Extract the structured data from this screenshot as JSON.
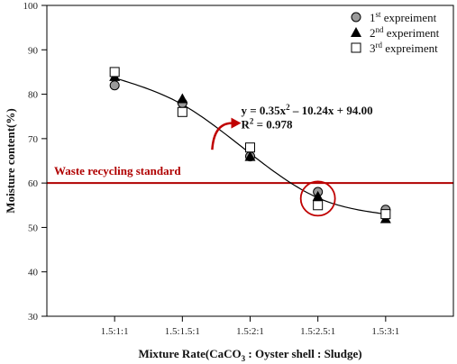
{
  "chart_data": {
    "type": "scatter",
    "categories": [
      "1.5:1:1",
      "1.5:1.5:1",
      "1.5:2:1",
      "1.5:2.5:1",
      "1.5:3:1"
    ],
    "x_numeric": [
      1,
      1.5,
      2,
      2.5,
      3
    ],
    "ylabel": "Moisture content(%)",
    "xlabel": {
      "before": "Mixture Rate(CaCO",
      "sub": "3",
      "after": " : Oyster shell : Sludge)"
    },
    "ylim": [
      30,
      100
    ],
    "yticks": [
      30,
      40,
      50,
      60,
      70,
      80,
      90,
      100
    ],
    "series": [
      {
        "name": {
          "pre": "1",
          "sup": "st",
          "post": " expreiment"
        },
        "marker": "circle",
        "values": [
          82,
          78,
          66,
          58,
          54
        ]
      },
      {
        "name": {
          "pre": "2",
          "sup": "nd",
          "post": " experiment"
        },
        "marker": "triangle",
        "values": [
          84,
          79,
          66,
          57,
          52
        ]
      },
      {
        "name": {
          "pre": "3",
          "sup": "rd",
          "post": " expreiment"
        },
        "marker": "square",
        "values": [
          85,
          76,
          68,
          55,
          53
        ]
      }
    ],
    "fit": {
      "equation": {
        "p1": "y = 0.35x",
        "sup": "2",
        "p2": " – 10.24x + 94.00"
      },
      "r2": {
        "p1": "R",
        "sup": "2",
        "p2": " = 0.978"
      }
    },
    "standard_line": {
      "value": 60,
      "label": "Waste recycling standard",
      "color": "#b00000"
    },
    "legend_position": "top-right",
    "grid": false
  }
}
